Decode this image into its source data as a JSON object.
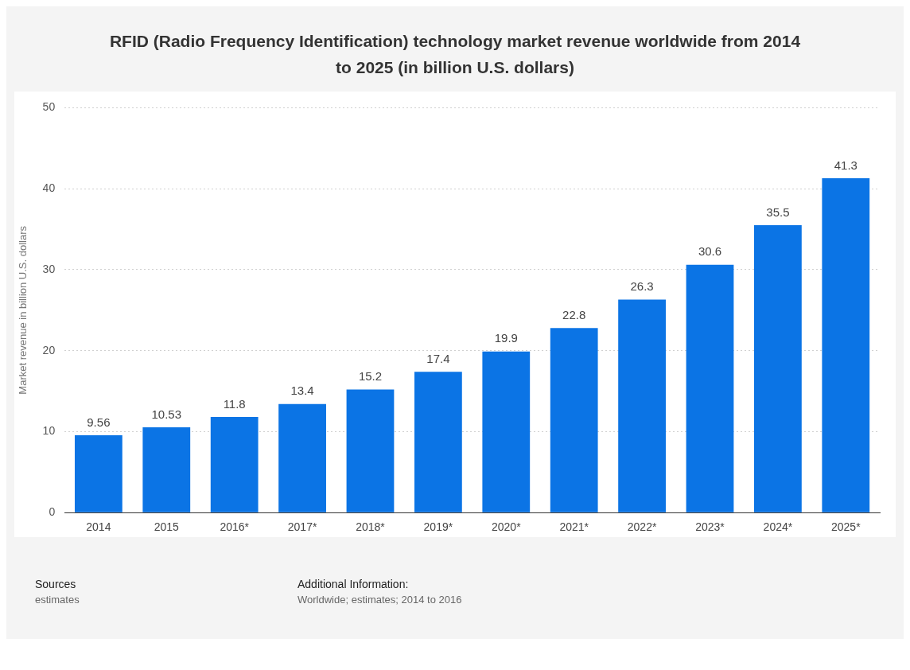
{
  "chart_data": {
    "type": "bar",
    "title": "RFID (Radio Frequency Identification) technology market revenue worldwide from 2014 to 2025 (in billion U.S. dollars)",
    "ylabel": "Market revenue in billion U.S. dollars",
    "categories": [
      "2014",
      "2015",
      "2016*",
      "2017*",
      "2018*",
      "2019*",
      "2020*",
      "2021*",
      "2022*",
      "2023*",
      "2024*",
      "2025*"
    ],
    "values": [
      9.56,
      10.53,
      11.8,
      13.4,
      15.2,
      17.4,
      19.9,
      22.8,
      26.3,
      30.6,
      35.5,
      41.3
    ],
    "color": "#0b74e5",
    "ylim": [
      0,
      50
    ],
    "yticks": [
      0,
      10,
      20,
      30,
      40,
      50
    ],
    "grid": "y",
    "legend": false,
    "data_labels": true,
    "annotations": [
      "Sources",
      "estimates",
      "Additional Information:",
      "Worldwide; estimates; 2014 to 2016"
    ]
  }
}
